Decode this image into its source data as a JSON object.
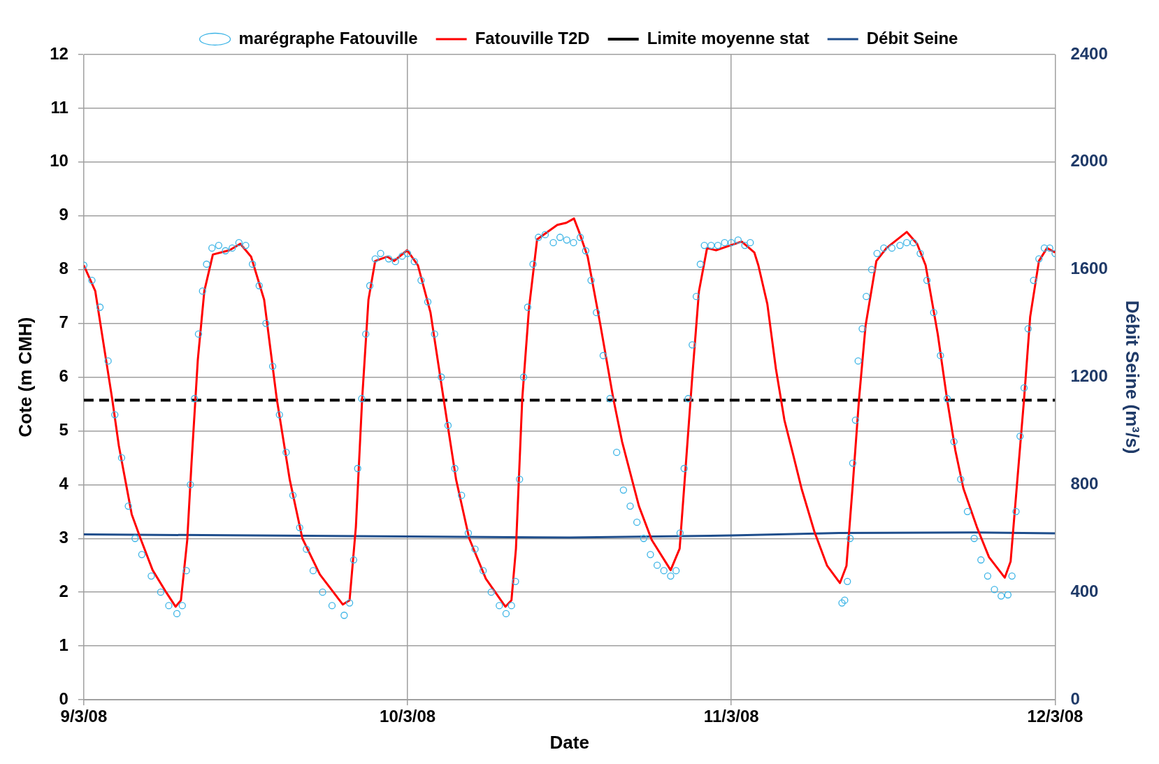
{
  "chart_data": {
    "type": "line",
    "xlabel": "Date",
    "ylabel": "Cote (m CMH)",
    "y2label": "Débit Seine (m³/s)",
    "xlim": [
      "--03-09",
      "--03-12"
    ],
    "xticks": [
      {
        "value": "--03-09",
        "label": "9/3/08"
      },
      {
        "value": "--03-10",
        "label": "10/3/08"
      },
      {
        "value": "--03-11",
        "label": "11/3/08"
      },
      {
        "value": "--03-12",
        "label": "12/3/08"
      }
    ],
    "ylim": [
      0,
      12
    ],
    "yticks": [
      0,
      1,
      2,
      3,
      4,
      5,
      6,
      7,
      8,
      9,
      10,
      11,
      12
    ],
    "y2lim": [
      0,
      2400
    ],
    "y2ticks": [
      0,
      400,
      800,
      1200,
      1600,
      2000,
      2400
    ],
    "grid": true,
    "legend": "top",
    "series": [
      {
        "name": "marégraphe Fatouville",
        "type": "scatter",
        "marker": "circle",
        "color": "#3cb4e6",
        "x": [
          "--03-09T00:00",
          "--03-09T00:36",
          "--03-09T01:12",
          "--03-09T01:48",
          "--03-09T02:18",
          "--03-09T02:48",
          "--03-09T03:18",
          "--03-09T03:48",
          "--03-09T04:18",
          "--03-09T05:00",
          "--03-09T05:42",
          "--03-09T06:18",
          "--03-09T06:54",
          "--03-09T07:18",
          "--03-09T07:36",
          "--03-09T07:54",
          "--03-09T08:12",
          "--03-09T08:30",
          "--03-09T08:48",
          "--03-09T09:06",
          "--03-09T09:30",
          "--03-09T10:00",
          "--03-09T10:30",
          "--03-09T11:00",
          "--03-09T11:30",
          "--03-09T12:00",
          "--03-09T12:30",
          "--03-09T13:00",
          "--03-09T13:30",
          "--03-09T14:00",
          "--03-09T14:30",
          "--03-09T15:00",
          "--03-09T15:30",
          "--03-09T16:00",
          "--03-09T16:30",
          "--03-09T17:00",
          "--03-09T17:42",
          "--03-09T18:24",
          "--03-09T19:18",
          "--03-09T19:42",
          "--03-09T20:00",
          "--03-09T20:18",
          "--03-09T20:36",
          "--03-09T20:54",
          "--03-09T21:12",
          "--03-09T21:36",
          "--03-09T22:00",
          "--03-09T22:36",
          "--03-09T23:06",
          "--03-09T23:36",
          "--03-10T00:00",
          "--03-10T00:30",
          "--03-10T01:00",
          "--03-10T01:30",
          "--03-10T02:00",
          "--03-10T02:30",
          "--03-10T03:00",
          "--03-10T03:30",
          "--03-10T04:00",
          "--03-10T04:30",
          "--03-10T05:00",
          "--03-10T05:36",
          "--03-10T06:12",
          "--03-10T06:48",
          "--03-10T07:18",
          "--03-10T07:42",
          "--03-10T08:00",
          "--03-10T08:18",
          "--03-10T08:36",
          "--03-10T08:54",
          "--03-10T09:18",
          "--03-10T09:42",
          "--03-10T10:12",
          "--03-10T10:48",
          "--03-10T11:18",
          "--03-10T11:48",
          "--03-10T12:18",
          "--03-10T12:48",
          "--03-10T13:12",
          "--03-10T13:36",
          "--03-10T14:00",
          "--03-10T14:30",
          "--03-10T15:00",
          "--03-10T15:30",
          "--03-10T16:00",
          "--03-10T16:30",
          "--03-10T17:00",
          "--03-10T17:30",
          "--03-10T18:00",
          "--03-10T18:30",
          "--03-10T19:00",
          "--03-10T19:30",
          "--03-10T19:54",
          "--03-10T20:12",
          "--03-10T20:30",
          "--03-10T20:48",
          "--03-10T21:06",
          "--03-10T21:24",
          "--03-10T21:42",
          "--03-10T22:00",
          "--03-10T22:30",
          "--03-10T23:00",
          "--03-10T23:30",
          "--03-11T00:00",
          "--03-11T00:30",
          "--03-11T01:00",
          "--03-11T01:24",
          "--03-11T08:12",
          "--03-11T08:24",
          "--03-11T08:36",
          "--03-11T08:48",
          "--03-11T09:00",
          "--03-11T09:12",
          "--03-11T09:24",
          "--03-11T09:42",
          "--03-11T10:00",
          "--03-11T10:24",
          "--03-11T10:48",
          "--03-11T11:18",
          "--03-11T11:54",
          "--03-11T12:30",
          "--03-11T13:00",
          "--03-11T13:30",
          "--03-11T14:00",
          "--03-11T14:30",
          "--03-11T15:00",
          "--03-11T15:30",
          "--03-11T16:00",
          "--03-11T16:30",
          "--03-11T17:00",
          "--03-11T17:30",
          "--03-11T18:00",
          "--03-11T18:30",
          "--03-11T19:00",
          "--03-11T19:30",
          "--03-11T20:00",
          "--03-11T20:30",
          "--03-11T20:48",
          "--03-11T21:06",
          "--03-11T21:24",
          "--03-11T21:42",
          "--03-11T22:00",
          "--03-11T22:24",
          "--03-11T22:48",
          "--03-11T23:12",
          "--03-11T23:36",
          "--03-12T00:00"
        ],
        "values": [
          8.08,
          7.8,
          7.3,
          6.3,
          5.3,
          4.5,
          3.6,
          3.0,
          2.7,
          2.3,
          2.0,
          1.75,
          1.6,
          1.75,
          2.4,
          4.0,
          5.6,
          6.8,
          7.6,
          8.1,
          8.4,
          8.45,
          8.35,
          8.4,
          8.5,
          8.45,
          8.1,
          7.7,
          7.0,
          6.2,
          5.3,
          4.6,
          3.8,
          3.2,
          2.8,
          2.4,
          2.0,
          1.75,
          1.57,
          1.8,
          2.6,
          4.3,
          5.6,
          6.8,
          7.7,
          8.2,
          8.3,
          8.2,
          8.15,
          8.25,
          8.3,
          8.15,
          7.8,
          7.4,
          6.8,
          6.0,
          5.1,
          4.3,
          3.8,
          3.1,
          2.8,
          2.4,
          2.0,
          1.75,
          1.6,
          1.75,
          2.2,
          4.1,
          6.0,
          7.3,
          8.1,
          8.6,
          8.65,
          8.5,
          8.6,
          8.55,
          8.5,
          8.6,
          8.35,
          7.8,
          7.2,
          6.4,
          5.6,
          4.6,
          3.9,
          3.6,
          3.3,
          3.0,
          2.7,
          2.5,
          2.4,
          2.3,
          2.4,
          3.1,
          4.3,
          5.6,
          6.6,
          7.5,
          8.1,
          8.45,
          8.45,
          8.45,
          8.5,
          8.5,
          8.55,
          8.45,
          8.5,
          1.8,
          1.85,
          2.2,
          3.0,
          4.4,
          5.2,
          6.3,
          6.9,
          7.5,
          8.0,
          8.3,
          8.4,
          8.4,
          8.45,
          8.5,
          8.5,
          8.3,
          7.8,
          7.2,
          6.4,
          5.6,
          4.8,
          4.1,
          3.5,
          3.0,
          2.6,
          2.3,
          2.05,
          1.93,
          1.95,
          2.3,
          3.5,
          4.9,
          5.8,
          6.9,
          7.8,
          8.2,
          8.4,
          8.4,
          8.3
        ]
      },
      {
        "name": "Fatouville T2D",
        "type": "line",
        "marker": "none",
        "line_style": "solid",
        "color": "#ff0000",
        "x": [
          "--03-09T00:00",
          "--03-09T00:51",
          "--03-09T01:39",
          "--03-09T02:06",
          "--03-09T02:36",
          "--03-09T03:33",
          "--03-09T04:12",
          "--03-09T05:06",
          "--03-09T06:06",
          "--03-09T06:48",
          "--03-09T07:12",
          "--03-09T07:40",
          "--03-09T07:59",
          "--03-09T08:27",
          "--03-09T08:56",
          "--03-09T09:34",
          "--03-09T10:48",
          "--03-09T11:36",
          "--03-09T12:24",
          "--03-09T13:22",
          "--03-09T14:18",
          "--03-09T15:16",
          "--03-09T16:12",
          "--03-09T17:30",
          "--03-09T19:12",
          "--03-09T19:42",
          "--03-09T20:10",
          "--03-09T20:38",
          "--03-09T21:06",
          "--03-09T21:36",
          "--03-09T22:30",
          "--03-09T23:00",
          "--03-09T23:58",
          "--03-10T00:46",
          "--03-10T01:42",
          "--03-10T02:40",
          "--03-10T03:36",
          "--03-10T04:34",
          "--03-10T05:48",
          "--03-10T07:15",
          "--03-10T07:42",
          "--03-10T08:02",
          "--03-10T08:30",
          "--03-10T09:00",
          "--03-10T09:36",
          "--03-10T11:06",
          "--03-10T11:46",
          "--03-10T12:20",
          "--03-10T12:42",
          "--03-10T13:21",
          "--03-10T14:18",
          "--03-10T15:15",
          "--03-10T15:54",
          "--03-10T17:09",
          "--03-10T18:06",
          "--03-10T19:30",
          "--03-10T20:10",
          "--03-10T20:38",
          "--03-10T21:06",
          "--03-10T21:36",
          "--03-10T22:12",
          "--03-10T22:52",
          "--03-10T23:48",
          "--03-11T00:46",
          "--03-11T01:42",
          "--03-11T02:00",
          "--03-11T02:40",
          "--03-11T03:18",
          "--03-11T03:56",
          "--03-11T04:34",
          "--03-11T05:12",
          "--03-11T06:09",
          "--03-11T07:06",
          "--03-11T08:03",
          "--03-11T08:32",
          "--03-11T09:00",
          "--03-11T09:28",
          "--03-11T09:57",
          "--03-11T10:45",
          "--03-11T11:30",
          "--03-11T13:00",
          "--03-11T13:46",
          "--03-11T14:24",
          "--03-11T15:18",
          "--03-11T15:59",
          "--03-11T16:36",
          "--03-11T17:12",
          "--03-11T18:12",
          "--03-11T19:06",
          "--03-11T20:16",
          "--03-11T20:42",
          "--03-11T21:12",
          "--03-11T21:42",
          "--03-11T22:09",
          "--03-11T22:48",
          "--03-11T23:24",
          "--03-12T00:00"
        ],
        "values": [
          8.08,
          7.6,
          6.32,
          5.6,
          4.72,
          3.45,
          3.0,
          2.41,
          2.0,
          1.73,
          1.85,
          2.97,
          4.4,
          6.32,
          7.6,
          8.28,
          8.36,
          8.48,
          8.24,
          7.44,
          5.6,
          4.09,
          3.0,
          2.33,
          1.77,
          1.85,
          3.21,
          5.6,
          7.44,
          8.16,
          8.24,
          8.16,
          8.36,
          8.08,
          7.2,
          5.6,
          4.09,
          3.0,
          2.25,
          1.73,
          1.85,
          2.81,
          5.6,
          7.28,
          8.56,
          8.83,
          8.87,
          8.95,
          8.71,
          8.24,
          6.96,
          5.6,
          4.8,
          3.6,
          2.97,
          2.41,
          2.81,
          4.4,
          6.0,
          7.6,
          8.4,
          8.36,
          8.44,
          8.52,
          8.32,
          8.08,
          7.36,
          6.16,
          5.2,
          4.57,
          3.93,
          3.13,
          2.49,
          2.17,
          2.49,
          4.0,
          5.6,
          6.96,
          8.16,
          8.4,
          8.7,
          8.48,
          8.08,
          6.8,
          5.6,
          4.64,
          3.93,
          3.21,
          2.65,
          2.27,
          2.57,
          4.09,
          5.6,
          7.12,
          8.16,
          8.4,
          8.32
        ]
      },
      {
        "name": "Limite moyenne stat",
        "type": "line",
        "marker": "none",
        "line_style": "dashed",
        "color": "#000000",
        "x": [
          "--03-09T00:00",
          "--03-12T00:00"
        ],
        "values": [
          5.57,
          5.57
        ]
      },
      {
        "name": "Débit Seine",
        "type": "line",
        "marker": "none",
        "line_style": "solid",
        "axis": "y2",
        "color": "#1f4e8c",
        "x": [
          "--03-09T00:00",
          "--03-10T00:00",
          "--03-10T12:00",
          "--03-11T00:00",
          "--03-11T08:00",
          "--03-11T18:00",
          "--03-12T00:00"
        ],
        "values": [
          615,
          607,
          603,
          611,
          620,
          622,
          619
        ]
      }
    ]
  }
}
